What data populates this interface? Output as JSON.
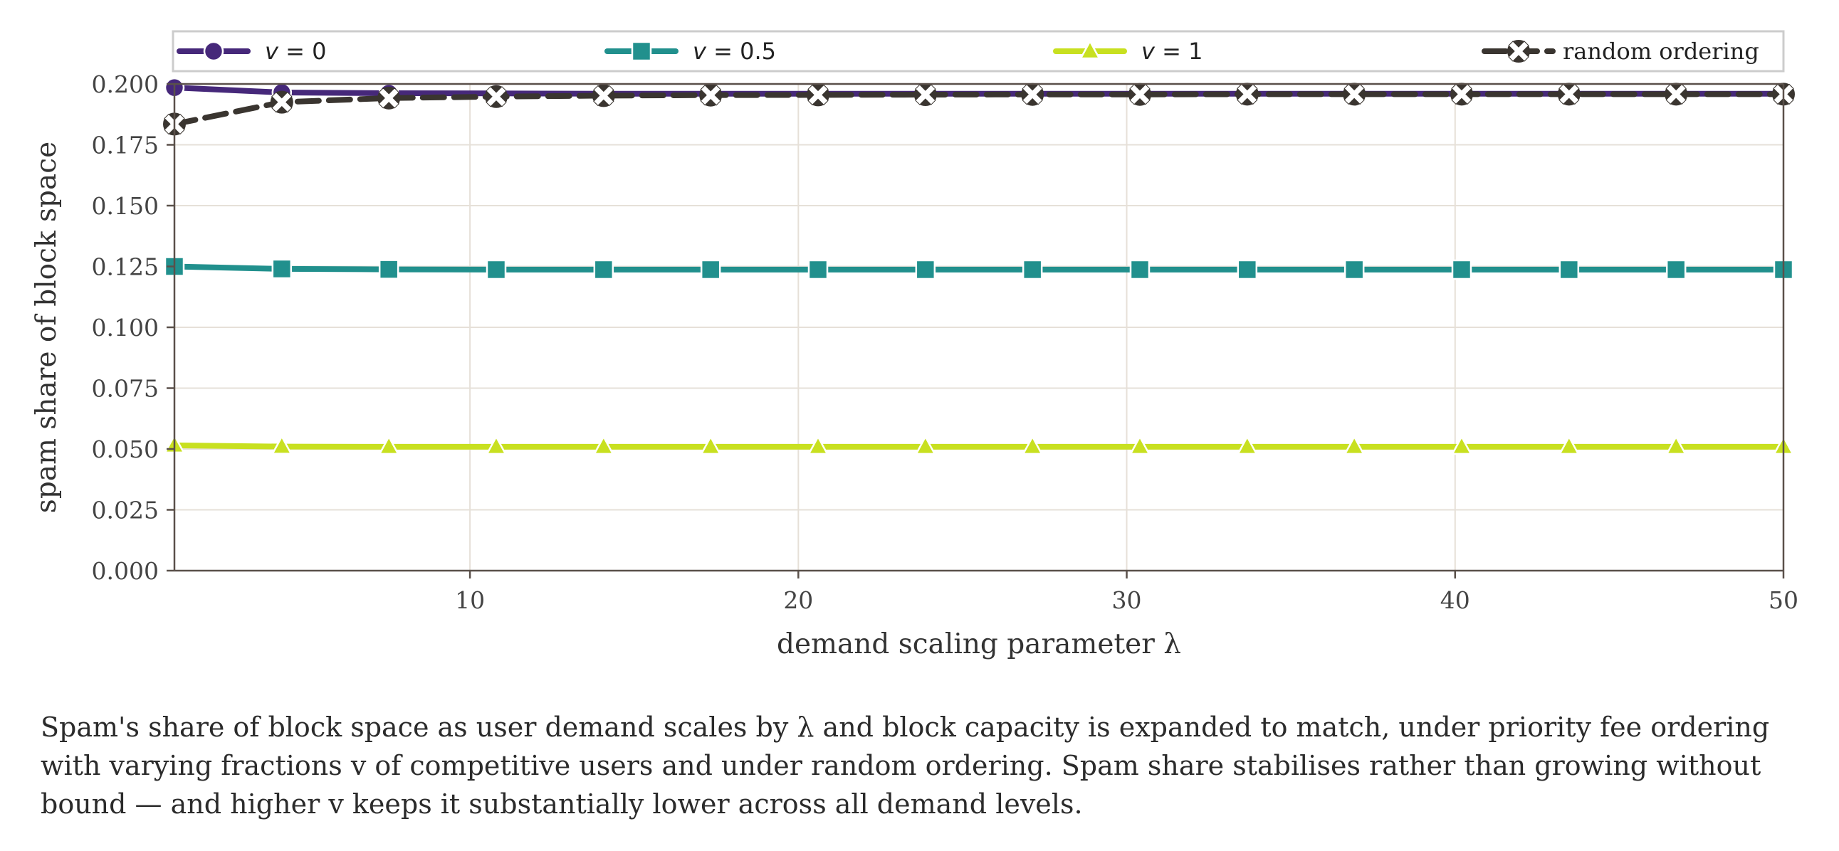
{
  "chart_data": {
    "type": "line",
    "title": "",
    "xlabel": "demand scaling parameter λ",
    "ylabel": "spam share of block space",
    "xlim": [
      1,
      50
    ],
    "ylim": [
      0,
      0.2
    ],
    "x_ticks": [
      10,
      20,
      30,
      40,
      50
    ],
    "x_tick_labels": [
      "10",
      "20",
      "30",
      "40",
      "50"
    ],
    "y_ticks": [
      0,
      0.025,
      0.05,
      0.075,
      0.1,
      0.125,
      0.15,
      0.175,
      0.2
    ],
    "y_tick_labels": [
      "0.000",
      "0.025",
      "0.050",
      "0.075",
      "0.100",
      "0.125",
      "0.150",
      "0.175",
      "0.200"
    ],
    "grid": true,
    "legend_position": "top",
    "x": [
      1.0,
      4.27,
      7.53,
      10.8,
      14.07,
      17.33,
      20.6,
      23.87,
      27.13,
      30.4,
      33.67,
      36.93,
      40.2,
      43.47,
      46.73,
      50.0
    ],
    "series": [
      {
        "name": "v = 0",
        "legend_prefix": "v",
        "legend_suffix": " = 0",
        "color": "#46287a",
        "marker": "circle",
        "dash": "solid",
        "values": [
          0.1985,
          0.1965,
          0.1962,
          0.1961,
          0.196,
          0.196,
          0.196,
          0.196,
          0.196,
          0.196,
          0.196,
          0.196,
          0.196,
          0.196,
          0.196,
          0.196
        ]
      },
      {
        "name": "v = 0.5",
        "legend_prefix": "v",
        "legend_suffix": " = 0.5",
        "color": "#21908d",
        "marker": "square",
        "dash": "solid",
        "values": [
          0.125,
          0.124,
          0.1238,
          0.1237,
          0.1237,
          0.1237,
          0.1237,
          0.1237,
          0.1237,
          0.1237,
          0.1237,
          0.1237,
          0.1237,
          0.1237,
          0.1237,
          0.1237
        ]
      },
      {
        "name": "v = 1",
        "legend_prefix": "v",
        "legend_suffix": " = 1",
        "color": "#c8e020",
        "marker": "triangle",
        "dash": "solid",
        "values": [
          0.0515,
          0.051,
          0.0509,
          0.0509,
          0.0509,
          0.0509,
          0.0509,
          0.0509,
          0.0509,
          0.0509,
          0.0509,
          0.0509,
          0.0509,
          0.0509,
          0.0509,
          0.0509
        ]
      },
      {
        "name": "random ordering",
        "legend_prefix": "",
        "legend_suffix": "random ordering",
        "color": "#3a3530",
        "marker": "x-filled",
        "dash": "dashed",
        "values": [
          0.1835,
          0.1925,
          0.1942,
          0.1948,
          0.1952,
          0.1954,
          0.1955,
          0.1956,
          0.1957,
          0.1957,
          0.1958,
          0.1958,
          0.1958,
          0.1958,
          0.1958,
          0.1958
        ]
      }
    ]
  },
  "caption": "Spam's share of block space as user demand scales by λ and block capacity is expanded to match, under priority fee ordering with varying fractions v of competitive users and under random ordering. Spam share stabilises rather than growing without bound — and higher v keeps it substantially lower across all demand levels."
}
